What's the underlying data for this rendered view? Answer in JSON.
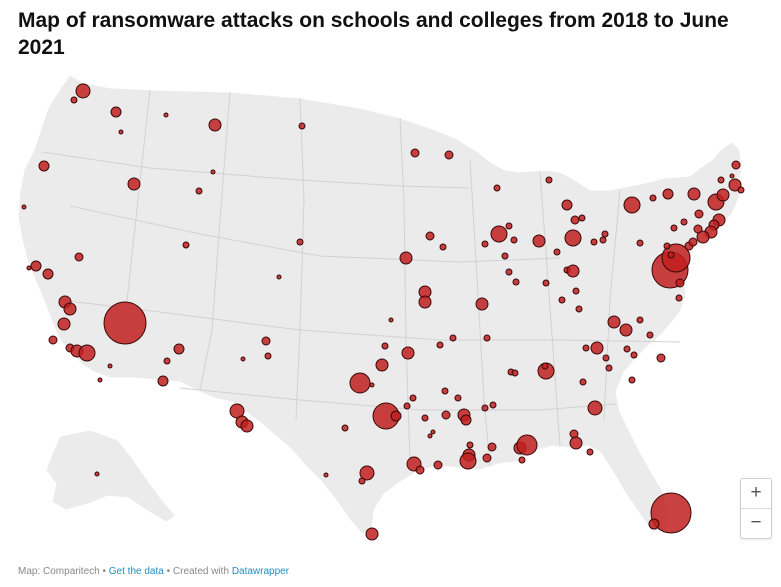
{
  "title": "Map of ransomware attacks on schools and colleges from 2018 to June 2021",
  "zoom": {
    "in_label": "+",
    "out_label": "−"
  },
  "footer": {
    "map_prefix": "Map: ",
    "source": "Comparitech",
    "sep1": " • ",
    "data_link": "Get the data",
    "sep2": " • Created with ",
    "tool_link": "Datawrapper"
  },
  "colors": {
    "land": "#ebebeb",
    "state_border": "#ffffff",
    "marker_fill": "#c0201f",
    "marker_stroke": "#3a0808",
    "accent_link": "#1f8ec4"
  }
}
